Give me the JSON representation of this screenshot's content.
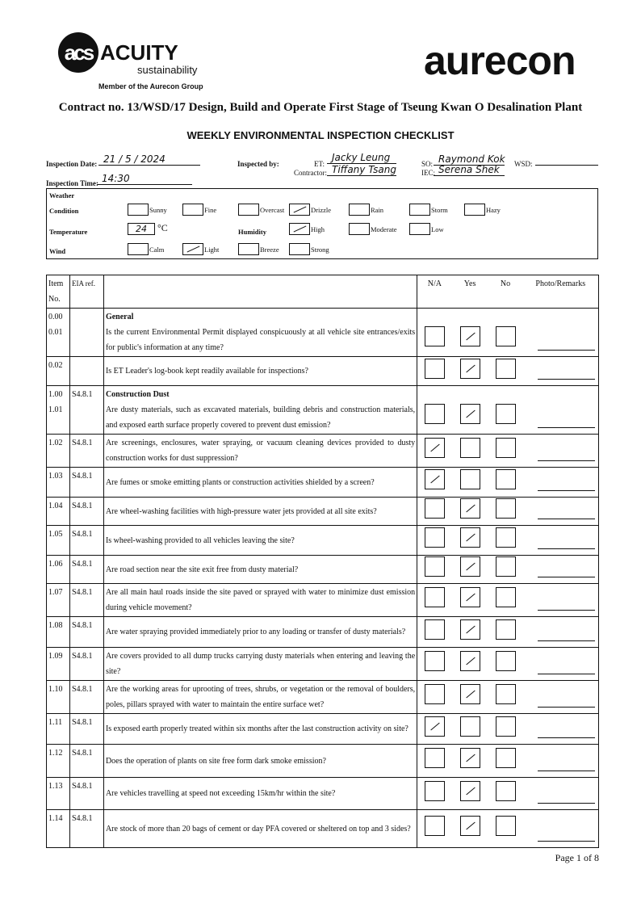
{
  "header": {
    "logo_left": "acs",
    "logo_left_name": "ACUITY",
    "logo_left_sub": "sustainability",
    "member_line": "Member of the Aurecon Group",
    "logo_right": "aurecon",
    "contract": "Contract no. 13/WSD/17 Design, Build and Operate First Stage of Tseung Kwan O Desalination Plant",
    "title": "WEEKLY ENVIRONMENTAL INSPECTION CHECKLIST"
  },
  "inspection": {
    "date_label": "Inspection Date:",
    "date_value": "21 / 5 / 2024",
    "time_label": "Inspection Time:",
    "time_value": "14:30",
    "by_label": "Inspected by:",
    "et_label": "ET:",
    "et_value": "Jacky Leung",
    "contractor_label": "Contractor:",
    "contractor_value": "Tiffany Tsang",
    "so_label": "SO:",
    "so_value": "Raymond Kok",
    "iec_label": "IEC:",
    "iec_value": "Serena Shek",
    "wsd_label": "WSD:",
    "wsd_value": ""
  },
  "weather": {
    "heading": "Weather",
    "condition_label": "Condition",
    "conditions": [
      {
        "label": "Sunny",
        "checked": false
      },
      {
        "label": "Fine",
        "checked": false
      },
      {
        "label": "Overcast",
        "checked": false
      },
      {
        "label": "Drizzle",
        "checked": true
      },
      {
        "label": "Rain",
        "checked": false
      },
      {
        "label": "Storm",
        "checked": false
      },
      {
        "label": "Hazy",
        "checked": false
      }
    ],
    "temperature_label": "Temperature",
    "temperature_value": "24",
    "temperature_unit": "°C",
    "humidity_label": "Humidity",
    "humidity": [
      {
        "label": "High",
        "checked": true
      },
      {
        "label": "Moderate",
        "checked": false
      },
      {
        "label": "Low",
        "checked": false
      }
    ],
    "wind_label": "Wind",
    "wind": [
      {
        "label": "Calm",
        "checked": false
      },
      {
        "label": "Light",
        "checked": true
      },
      {
        "label": "Breeze",
        "checked": false
      },
      {
        "label": "Strong",
        "checked": false
      }
    ]
  },
  "table": {
    "headers": {
      "item": "Item No.",
      "eia": "EIA ref.",
      "na": "N/A",
      "yes": "Yes",
      "no": "No",
      "remarks": "Photo/Remarks"
    },
    "rows": [
      {
        "items": [
          "0.00",
          "0.01"
        ],
        "eia": "",
        "section": "General",
        "question": "Is the current Environmental Permit displayed conspicuously at all vehicle site entrances/exits for public's information at any time?",
        "answer": "yes"
      },
      {
        "items": [
          "0.02"
        ],
        "eia": "",
        "section": "",
        "question": "Is ET Leader's log-book kept readily available for inspections?",
        "answer": "yes"
      },
      {
        "items": [
          "1.00",
          "1.01"
        ],
        "eia": "S4.8.1",
        "section": "Construction Dust",
        "question": "Are dusty materials, such as excavated materials, building debris and construction materials, and exposed earth surface properly covered to prevent dust emission?",
        "answer": "yes"
      },
      {
        "items": [
          "1.02"
        ],
        "eia": "S4.8.1",
        "section": "",
        "question": "Are screenings, enclosures, water spraying, or vacuum cleaning devices provided to dusty construction works for dust suppression?",
        "answer": "na"
      },
      {
        "items": [
          "1.03"
        ],
        "eia": "S4.8.1",
        "section": "",
        "question": "Are fumes or smoke emitting plants or construction activities shielded by a screen?",
        "answer": "na"
      },
      {
        "items": [
          "1.04"
        ],
        "eia": "S4.8.1",
        "section": "",
        "question": "Are wheel-washing facilities with high-pressure water jets provided at all site exits?",
        "answer": "yes"
      },
      {
        "items": [
          "1.05"
        ],
        "eia": "S4.8.1",
        "section": "",
        "question": "Is wheel-washing provided to all vehicles leaving the site?",
        "answer": "yes"
      },
      {
        "items": [
          "1.06"
        ],
        "eia": "S4.8.1",
        "section": "",
        "question": "Are road section near the site exit free from dusty material?",
        "answer": "yes"
      },
      {
        "items": [
          "1.07"
        ],
        "eia": "S4.8.1",
        "section": "",
        "question": "Are all main haul roads inside the site paved or sprayed with water to minimize dust emission during vehicle movement?",
        "answer": "yes"
      },
      {
        "items": [
          "1.08"
        ],
        "eia": "S4.8.1",
        "section": "",
        "question": "Are water spraying provided immediately prior to any loading or transfer of dusty materials?",
        "answer": "yes"
      },
      {
        "items": [
          "1.09"
        ],
        "eia": "S4.8.1",
        "section": "",
        "question": "Are covers provided to all dump trucks carrying dusty materials when entering and leaving the site?",
        "answer": "yes"
      },
      {
        "items": [
          "1.10"
        ],
        "eia": "S4.8.1",
        "section": "",
        "question": "Are the working areas for uprooting of trees, shrubs, or vegetation or the removal of boulders, poles, pillars sprayed with water to maintain the entire surface wet?",
        "answer": "yes"
      },
      {
        "items": [
          "1.11"
        ],
        "eia": "S4.8.1",
        "section": "",
        "question": "Is exposed earth properly treated within six months after the last construction activity on site?",
        "answer": "na"
      },
      {
        "items": [
          "1.12"
        ],
        "eia": "S4.8.1",
        "section": "",
        "question": "Does the operation of plants on site free form dark smoke emission?",
        "answer": "yes"
      },
      {
        "items": [
          "1.13"
        ],
        "eia": "S4.8.1",
        "section": "",
        "question": "Are vehicles travelling at speed not exceeding 15km/hr within the site?",
        "answer": "yes"
      },
      {
        "items": [
          "1.14"
        ],
        "eia": "S4.8.1",
        "section": "",
        "question": "Are stock of more than 20 bags of cement or day PFA covered or sheltered on top and 3 sides?",
        "answer": "yes"
      }
    ]
  },
  "footer": {
    "page": "Page 1 of 8"
  }
}
